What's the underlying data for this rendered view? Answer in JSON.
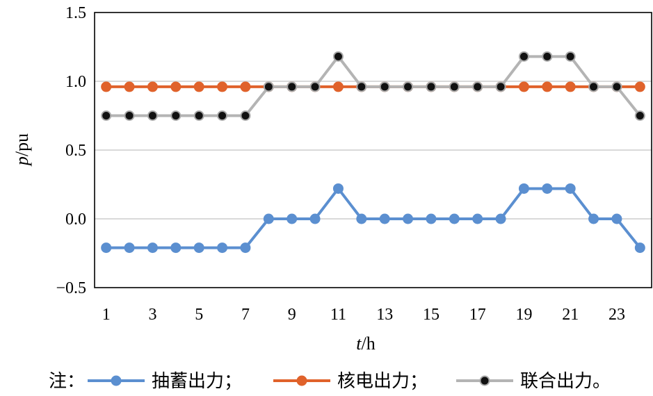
{
  "chart_data": {
    "type": "line",
    "x": [
      1,
      2,
      3,
      4,
      5,
      6,
      7,
      8,
      9,
      10,
      11,
      12,
      13,
      14,
      15,
      16,
      17,
      18,
      19,
      20,
      21,
      22,
      23,
      24
    ],
    "x_tick_labels": [
      "1",
      "3",
      "5",
      "7",
      "9",
      "11",
      "13",
      "15",
      "17",
      "19",
      "21",
      "23"
    ],
    "x_tick_values": [
      1,
      3,
      5,
      7,
      9,
      11,
      13,
      15,
      17,
      19,
      21,
      23
    ],
    "y_tick_labels": [
      "1.5",
      "1.0",
      "0.5",
      "0.0",
      "−0.5"
    ],
    "y_tick_values": [
      1.5,
      1.0,
      0.5,
      0.0,
      -0.5
    ],
    "ylim": [
      -0.5,
      1.5
    ],
    "xlim": [
      0.5,
      24.5
    ],
    "xlabel_italic": "t",
    "xlabel_unit": "/h",
    "ylabel_italic": "p",
    "ylabel_unit": "/pu",
    "grid": true,
    "legend_prefix": "注：",
    "series": [
      {
        "name": "抽蓄出力",
        "legend_suffix": "；",
        "color": "#5b8fd0",
        "marker_fill": "#5b8fd0",
        "marker_stroke": "#5b8fd0",
        "values": [
          -0.21,
          -0.21,
          -0.21,
          -0.21,
          -0.21,
          -0.21,
          -0.21,
          0,
          0,
          0,
          0.22,
          0,
          0,
          0,
          0,
          0,
          0,
          0,
          0.22,
          0.22,
          0.22,
          0,
          0,
          -0.21
        ]
      },
      {
        "name": "核电出力",
        "legend_suffix": "；",
        "color": "#e0622b",
        "marker_fill": "#e0622b",
        "marker_stroke": "#e0622b",
        "values": [
          0.96,
          0.96,
          0.96,
          0.96,
          0.96,
          0.96,
          0.96,
          0.96,
          0.96,
          0.96,
          0.96,
          0.96,
          0.96,
          0.96,
          0.96,
          0.96,
          0.96,
          0.96,
          0.96,
          0.96,
          0.96,
          0.96,
          0.96,
          0.96
        ]
      },
      {
        "name": "联合出力",
        "legend_suffix": "。",
        "color": "#b4b4b4",
        "marker_fill": "#111111",
        "marker_stroke": "#a8a8a8",
        "values": [
          0.75,
          0.75,
          0.75,
          0.75,
          0.75,
          0.75,
          0.75,
          0.96,
          0.96,
          0.96,
          1.18,
          0.96,
          0.96,
          0.96,
          0.96,
          0.96,
          0.96,
          0.96,
          1.18,
          1.18,
          1.18,
          0.96,
          0.96,
          0.75
        ]
      }
    ]
  }
}
